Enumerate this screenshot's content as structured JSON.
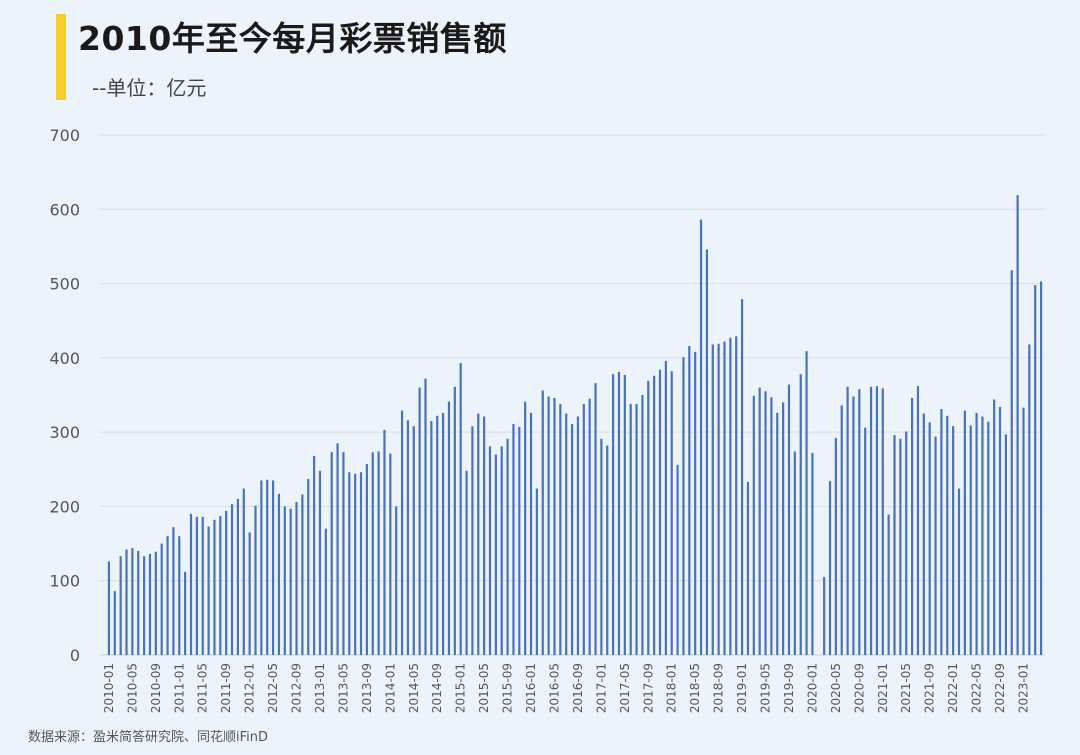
{
  "header": {
    "title": "2010年至今每月彩票销售额",
    "subtitle": "--单位：亿元"
  },
  "footer": {
    "source": "数据来源：盈米简答研究院、同花顺iFinD"
  },
  "colors": {
    "bar": "#4a72b8",
    "grid": "#d7dde6",
    "accent": "#f7cd2c",
    "background": "#edf3fb"
  },
  "chart_data": {
    "type": "bar",
    "title": "2010年至今每月彩票销售额",
    "subtitle": "--单位：亿元",
    "xlabel": "",
    "ylabel": "",
    "ylim": [
      0,
      700
    ],
    "yticks": [
      0,
      100,
      200,
      300,
      400,
      500,
      600,
      700
    ],
    "grid": true,
    "start_month": "2010-01",
    "xtick_labels": [
      "2010-01",
      "2010-05",
      "2010-09",
      "2011-01",
      "2011-05",
      "2011-09",
      "2012-01",
      "2012-05",
      "2012-09",
      "2013-01",
      "2013-05",
      "2013-09",
      "2014-01",
      "2014-05",
      "2014-09",
      "2015-01",
      "2015-05",
      "2015-09",
      "2016-01",
      "2016-05",
      "2016-09",
      "2017-01",
      "2017-05",
      "2017-09",
      "2018-01",
      "2018-05",
      "2018-09",
      "2019-01",
      "2019-05",
      "2019-09",
      "2020-01",
      "2020-05",
      "2020-09",
      "2021-01",
      "2021-05",
      "2021-09",
      "2022-01",
      "2022-05",
      "2022-09",
      "2023-01"
    ],
    "values": [
      126,
      86,
      133,
      142,
      144,
      140,
      133,
      136,
      139,
      150,
      160,
      172,
      160,
      112,
      190,
      186,
      186,
      173,
      182,
      187,
      194,
      203,
      210,
      224,
      165,
      201,
      235,
      236,
      235,
      217,
      200,
      197,
      206,
      216,
      237,
      268,
      248,
      170,
      273,
      285,
      273,
      246,
      244,
      246,
      257,
      273,
      274,
      303,
      271,
      200,
      329,
      316,
      308,
      360,
      372,
      315,
      322,
      326,
      341,
      361,
      393,
      248,
      308,
      325,
      321,
      281,
      270,
      281,
      291,
      311,
      307,
      341,
      326,
      224,
      356,
      348,
      346,
      338,
      325,
      311,
      321,
      338,
      345,
      366,
      291,
      282,
      378,
      381,
      377,
      338,
      338,
      350,
      369,
      376,
      384,
      396,
      382,
      256,
      401,
      416,
      408,
      586,
      546,
      418,
      419,
      422,
      427,
      429,
      479,
      233,
      349,
      360,
      355,
      347,
      326,
      340,
      364,
      274,
      378,
      409,
      272,
      0,
      105,
      234,
      292,
      336,
      361,
      348,
      358,
      306,
      361,
      362,
      359,
      189,
      296,
      291,
      301,
      346,
      362,
      325,
      313,
      294,
      331,
      322,
      308,
      224,
      329,
      309,
      326,
      321,
      314,
      344,
      334,
      297,
      518,
      619,
      333,
      418,
      498,
      503
    ]
  }
}
